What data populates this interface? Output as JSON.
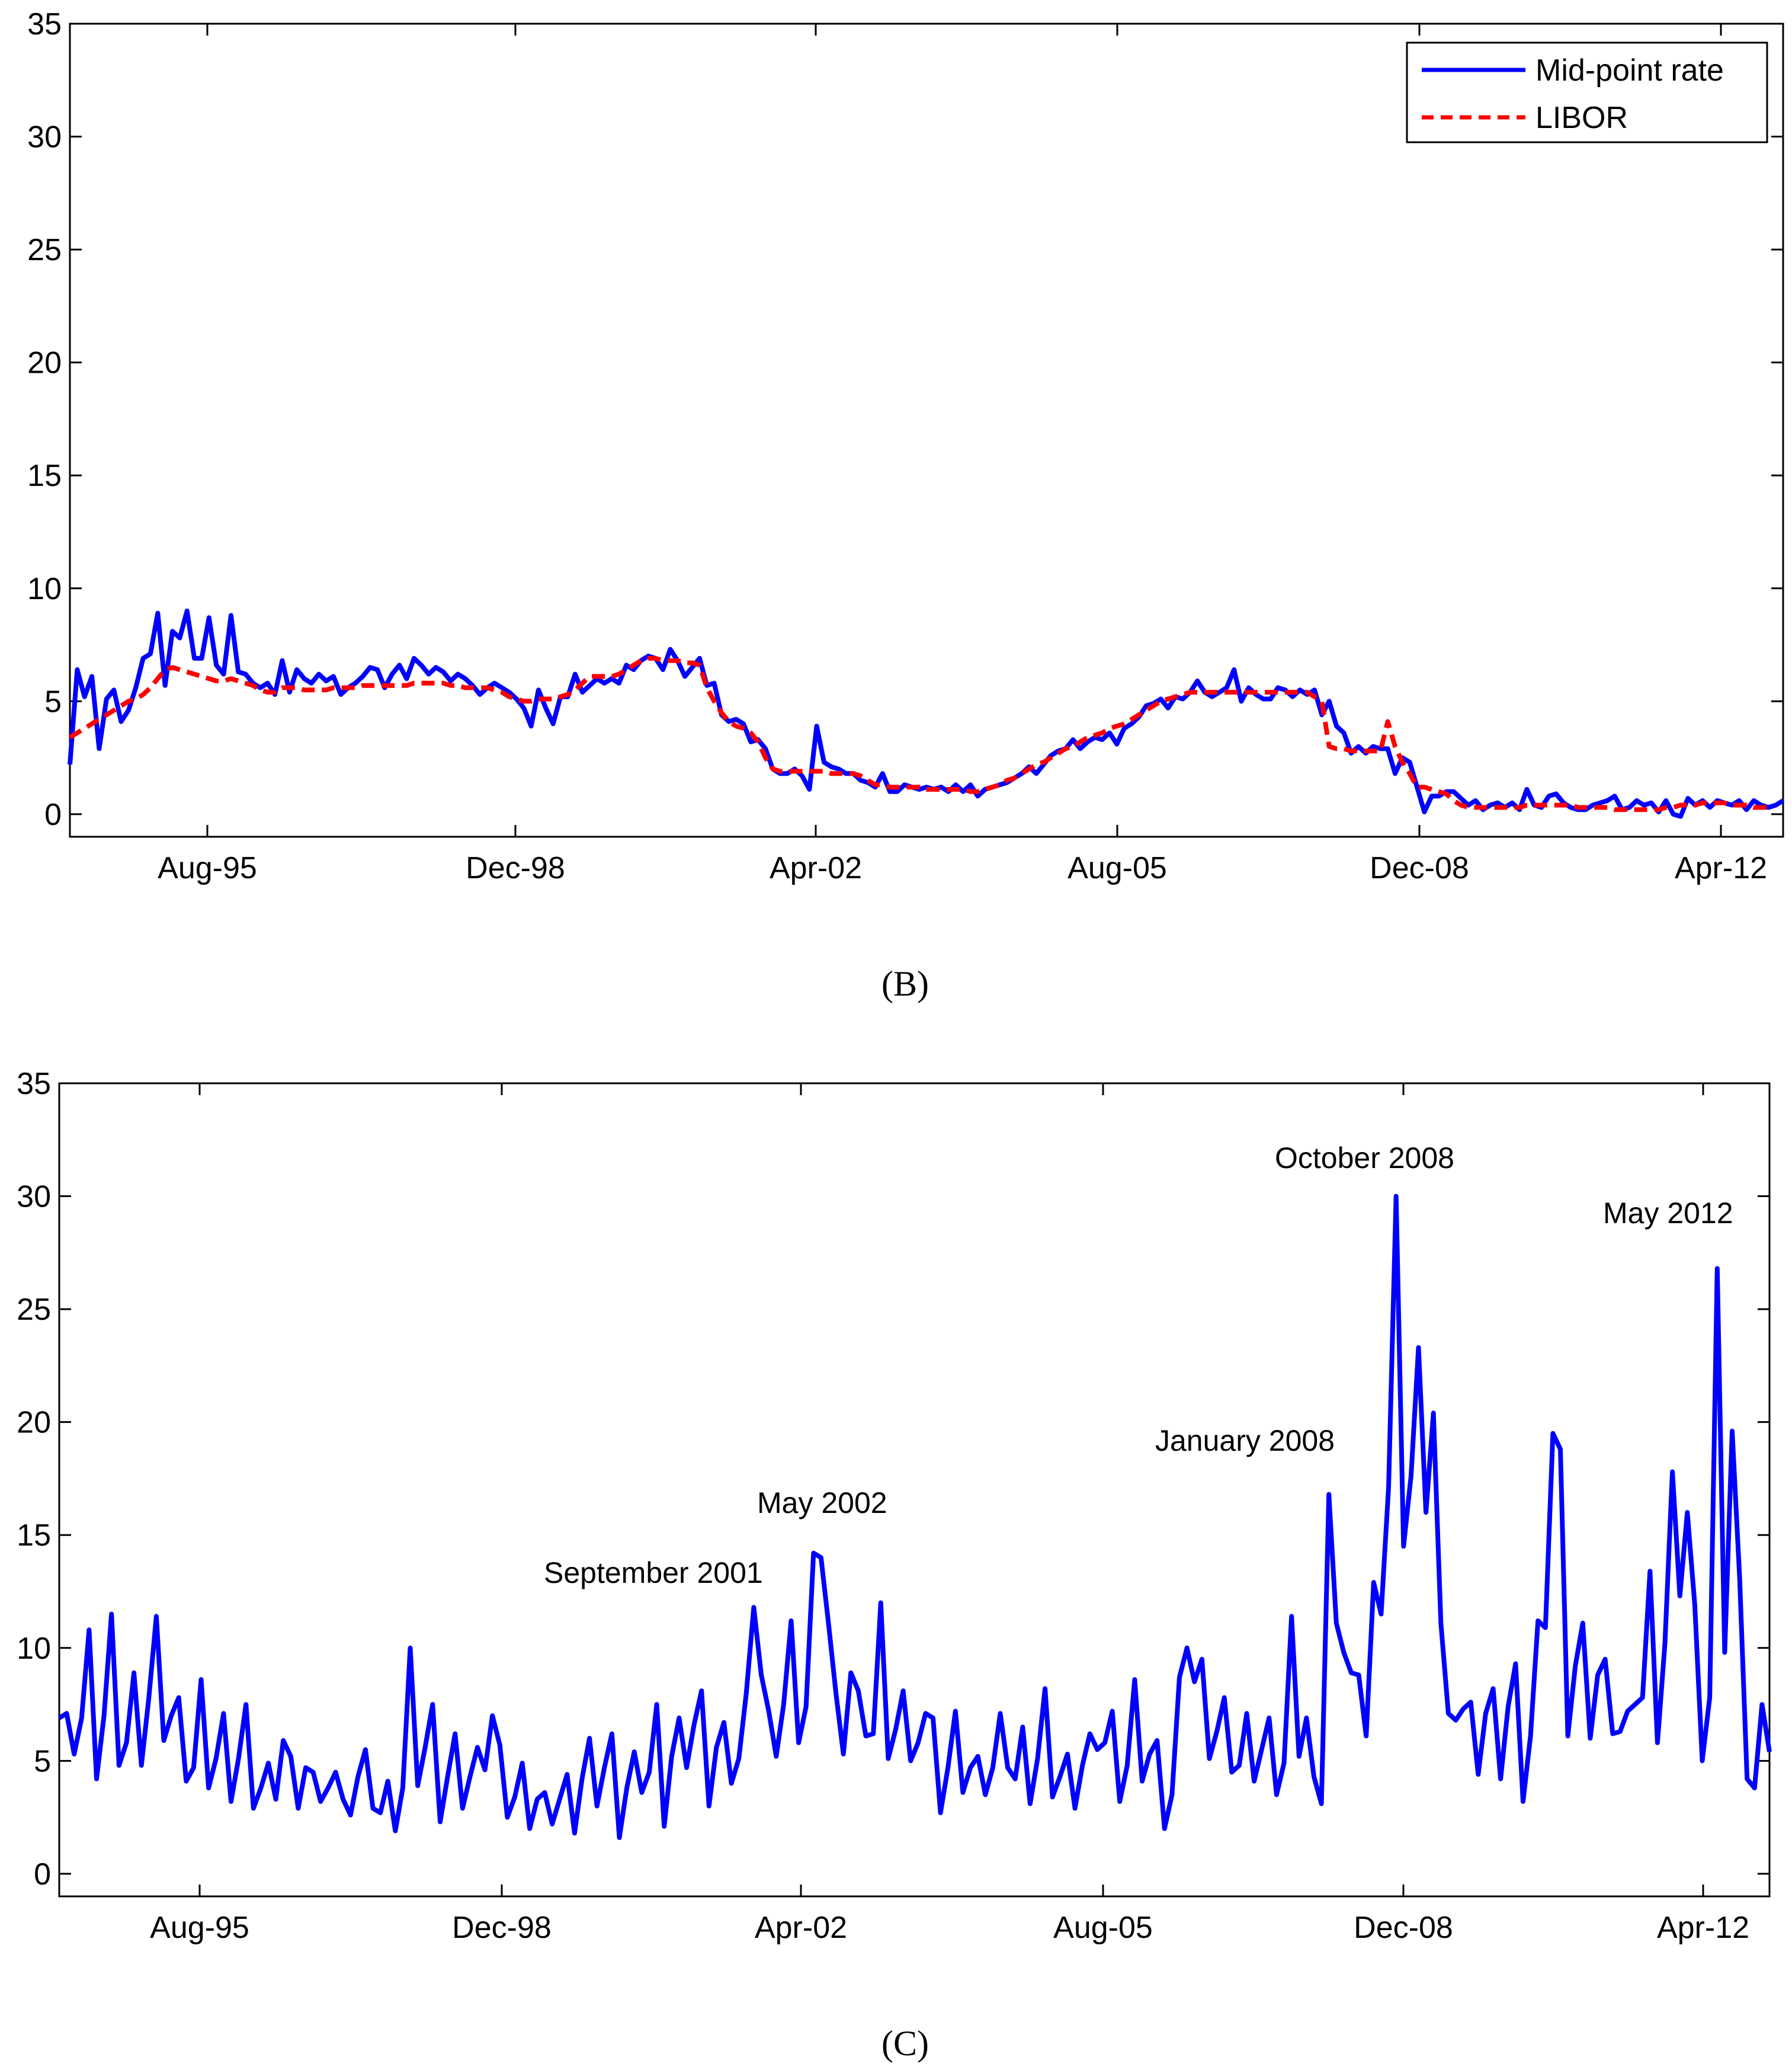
{
  "chart_data": [
    {
      "type": "line",
      "panel_label": "B",
      "title": "",
      "xlabel": "",
      "ylabel": "",
      "ylim": [
        -1,
        35
      ],
      "yticks": [
        "0",
        "5",
        "10",
        "15",
        "20",
        "25",
        "30",
        "35"
      ],
      "x_tick_labels": [
        "Aug-95",
        "Dec-98",
        "Apr-02",
        "Aug-05",
        "Dec-08",
        "Apr-12"
      ],
      "x_start": "Jan-94",
      "x_end": "Sep-12",
      "grid": false,
      "legend_position": "top-right",
      "series": [
        {
          "name": "Mid-point rate",
          "color": "#0000ff",
          "style": "solid",
          "values": [
            2.2,
            6.4,
            5.2,
            6.1,
            2.9,
            5.1,
            5.5,
            4.1,
            4.6,
            5.6,
            6.9,
            7.1,
            8.9,
            5.7,
            8.1,
            7.8,
            9.0,
            6.9,
            6.9,
            8.7,
            6.6,
            6.2,
            8.8,
            6.3,
            6.2,
            5.8,
            5.6,
            5.8,
            5.3,
            6.8,
            5.4,
            6.4,
            6.0,
            5.8,
            6.2,
            5.9,
            6.1,
            5.3,
            5.6,
            5.8,
            6.1,
            6.5,
            6.4,
            5.6,
            6.2,
            6.6,
            6.0,
            6.9,
            6.6,
            6.2,
            6.5,
            6.3,
            5.9,
            6.2,
            6.0,
            5.7,
            5.3,
            5.6,
            5.8,
            5.6,
            5.4,
            5.1,
            4.7,
            3.9,
            5.5,
            4.7,
            4.0,
            5.2,
            5.2,
            6.2,
            5.4,
            5.7,
            6.0,
            5.8,
            6.0,
            5.8,
            6.6,
            6.4,
            6.8,
            7.0,
            6.9,
            6.4,
            7.3,
            6.8,
            6.1,
            6.5,
            6.9,
            5.7,
            5.8,
            4.4,
            4.1,
            4.2,
            4.0,
            3.2,
            3.3,
            2.9,
            2.0,
            1.8,
            1.8,
            2.0,
            1.7,
            1.1,
            3.9,
            2.3,
            2.1,
            2.0,
            1.8,
            1.8,
            1.5,
            1.4,
            1.2,
            1.8,
            1.0,
            1.0,
            1.3,
            1.2,
            1.1,
            1.2,
            1.1,
            1.2,
            1.0,
            1.3,
            1.0,
            1.3,
            0.8,
            1.1,
            1.2,
            1.3,
            1.4,
            1.6,
            1.8,
            2.1,
            1.8,
            2.2,
            2.6,
            2.8,
            2.9,
            3.3,
            2.9,
            3.2,
            3.4,
            3.3,
            3.6,
            3.1,
            3.8,
            4.0,
            4.3,
            4.8,
            4.9,
            5.1,
            4.7,
            5.2,
            5.1,
            5.4,
            5.9,
            5.4,
            5.2,
            5.4,
            5.6,
            6.4,
            5.0,
            5.6,
            5.3,
            5.1,
            5.1,
            5.6,
            5.5,
            5.2,
            5.5,
            5.3,
            5.5,
            4.4,
            5.0,
            3.9,
            3.6,
            2.7,
            3.0,
            2.7,
            3.0,
            2.9,
            2.9,
            1.8,
            2.5,
            2.3,
            1.2,
            0.1,
            0.8,
            0.8,
            1.0,
            1.0,
            0.7,
            0.4,
            0.6,
            0.2,
            0.4,
            0.5,
            0.3,
            0.5,
            0.2,
            1.1,
            0.4,
            0.3,
            0.8,
            0.9,
            0.5,
            0.3,
            0.2,
            0.2,
            0.4,
            0.5,
            0.6,
            0.8,
            0.2,
            0.3,
            0.6,
            0.4,
            0.5,
            0.1,
            0.6,
            0.0,
            -0.1,
            0.7,
            0.4,
            0.6,
            0.3,
            0.6,
            0.5,
            0.4,
            0.6,
            0.2,
            0.6,
            0.4,
            0.3,
            0.4,
            0.6
          ]
        },
        {
          "name": "LIBOR",
          "color": "#ff0000",
          "style": "dashed",
          "values": [
            3.4,
            3.6,
            3.8,
            4.0,
            4.2,
            4.4,
            4.6,
            4.8,
            5.0,
            5.1,
            5.3,
            5.6,
            6.0,
            6.4,
            6.5,
            6.4,
            6.3,
            6.2,
            6.1,
            6.0,
            5.9,
            5.9,
            6.0,
            5.9,
            5.8,
            5.7,
            5.5,
            5.4,
            5.4,
            5.6,
            5.6,
            5.6,
            5.5,
            5.5,
            5.5,
            5.5,
            5.6,
            5.6,
            5.6,
            5.6,
            5.7,
            5.7,
            5.7,
            5.7,
            5.7,
            5.7,
            5.7,
            5.8,
            5.8,
            5.8,
            5.8,
            5.8,
            5.7,
            5.7,
            5.6,
            5.6,
            5.6,
            5.6,
            5.5,
            5.4,
            5.2,
            5.1,
            5.0,
            5.0,
            5.1,
            5.1,
            5.1,
            5.2,
            5.3,
            5.5,
            5.8,
            6.1,
            6.1,
            6.1,
            6.1,
            6.2,
            6.4,
            6.6,
            6.8,
            6.9,
            6.9,
            6.8,
            6.8,
            6.8,
            6.7,
            6.7,
            6.6,
            5.6,
            5.0,
            4.5,
            4.1,
            3.9,
            3.8,
            3.6,
            3.2,
            2.5,
            2.0,
            1.9,
            1.9,
            1.9,
            1.9,
            1.9,
            1.9,
            1.9,
            1.8,
            1.8,
            1.8,
            1.8,
            1.7,
            1.5,
            1.3,
            1.3,
            1.2,
            1.2,
            1.2,
            1.2,
            1.2,
            1.1,
            1.1,
            1.1,
            1.1,
            1.1,
            1.1,
            1.0,
            1.0,
            1.1,
            1.2,
            1.3,
            1.5,
            1.6,
            1.8,
            2.0,
            2.2,
            2.3,
            2.5,
            2.7,
            2.9,
            3.0,
            3.2,
            3.4,
            3.5,
            3.6,
            3.8,
            3.9,
            4.0,
            4.2,
            4.4,
            4.6,
            4.8,
            5.0,
            5.1,
            5.2,
            5.3,
            5.4,
            5.4,
            5.4,
            5.4,
            5.4,
            5.4,
            5.4,
            5.4,
            5.4,
            5.4,
            5.4,
            5.4,
            5.4,
            5.4,
            5.4,
            5.4,
            5.4,
            5.2,
            5.0,
            3.0,
            2.9,
            2.9,
            2.8,
            2.8,
            2.8,
            2.8,
            2.8,
            4.1,
            3.0,
            2.3,
            1.8,
            1.2,
            1.2,
            1.1,
            1.0,
            0.9,
            0.6,
            0.4,
            0.3,
            0.3,
            0.3,
            0.3,
            0.3,
            0.3,
            0.3,
            0.3,
            0.4,
            0.4,
            0.4,
            0.4,
            0.4,
            0.4,
            0.4,
            0.3,
            0.3,
            0.3,
            0.3,
            0.3,
            0.2,
            0.2,
            0.2,
            0.2,
            0.2,
            0.2,
            0.2,
            0.3,
            0.3,
            0.4,
            0.4,
            0.4,
            0.5,
            0.5,
            0.5,
            0.5,
            0.4,
            0.4,
            0.4,
            0.3,
            0.3,
            0.3
          ]
        }
      ]
    },
    {
      "type": "line",
      "panel_label": "C",
      "title": "",
      "xlabel": "",
      "ylabel": "",
      "ylim": [
        -1,
        35
      ],
      "yticks": [
        "0",
        "5",
        "10",
        "15",
        "20",
        "25",
        "30",
        "35"
      ],
      "x_tick_labels": [
        "Aug-95",
        "Dec-98",
        "Apr-02",
        "Aug-05",
        "Dec-08",
        "Apr-12"
      ],
      "x_start": "Jan-94",
      "x_end": "Sep-12",
      "grid": false,
      "series": [
        {
          "name": "",
          "color": "#0000ff",
          "style": "solid",
          "values": [
            6.9,
            7.1,
            5.3,
            6.9,
            10.8,
            4.2,
            7.0,
            11.5,
            4.8,
            5.8,
            8.9,
            4.8,
            7.8,
            11.4,
            5.9,
            7.0,
            7.8,
            4.1,
            4.7,
            8.6,
            3.8,
            5.1,
            7.1,
            3.2,
            5.1,
            7.5,
            2.9,
            3.8,
            4.9,
            3.3,
            5.9,
            5.2,
            2.9,
            4.7,
            4.5,
            3.2,
            3.8,
            4.5,
            3.3,
            2.6,
            4.3,
            5.5,
            2.9,
            2.7,
            4.1,
            1.9,
            3.8,
            10.0,
            3.9,
            5.6,
            7.5,
            2.3,
            4.3,
            6.2,
            2.9,
            4.3,
            5.6,
            4.6,
            7.0,
            5.7,
            2.5,
            3.4,
            4.9,
            2.0,
            3.3,
            3.6,
            2.2,
            3.3,
            4.4,
            1.8,
            4.2,
            6.0,
            3.0,
            4.7,
            6.2,
            1.6,
            3.8,
            5.4,
            3.6,
            4.5,
            7.5,
            2.1,
            5.2,
            6.9,
            4.7,
            6.6,
            8.1,
            3.0,
            5.6,
            6.7,
            4.0,
            5.1,
            8.0,
            11.8,
            8.8,
            7.2,
            5.2,
            7.5,
            11.2,
            5.8,
            7.4,
            14.2,
            14.0,
            11.1,
            8.0,
            5.3,
            8.9,
            8.1,
            6.1,
            6.2,
            12.0,
            5.1,
            6.4,
            8.1,
            5.0,
            5.8,
            7.1,
            6.9,
            2.7,
            4.7,
            7.2,
            3.6,
            4.7,
            5.2,
            3.5,
            4.7,
            7.1,
            4.7,
            4.2,
            6.5,
            3.1,
            5.1,
            8.2,
            3.4,
            4.3,
            5.3,
            2.9,
            4.8,
            6.2,
            5.5,
            5.8,
            7.2,
            3.2,
            4.8,
            8.6,
            4.1,
            5.3,
            5.9,
            2.0,
            3.5,
            8.7,
            10.0,
            8.5,
            9.5,
            5.1,
            6.3,
            7.8,
            4.5,
            4.8,
            7.1,
            4.1,
            5.5,
            6.9,
            3.5,
            4.9,
            11.4,
            5.2,
            6.9,
            4.3,
            3.1,
            16.8,
            11.1,
            9.8,
            8.9,
            8.8,
            6.1,
            12.9,
            11.5,
            17.1,
            30.0,
            14.5,
            17.6,
            23.3,
            16.0,
            20.4,
            11.1,
            7.1,
            6.8,
            7.3,
            7.6,
            4.4,
            7.1,
            8.2,
            4.2,
            7.4,
            9.3,
            3.2,
            6.1,
            11.2,
            10.9,
            19.5,
            18.8,
            6.1,
            9.2,
            11.1,
            6.0,
            8.8,
            9.5,
            6.2,
            6.3,
            7.2,
            7.5,
            7.8,
            13.4,
            5.8,
            10.2,
            17.8,
            12.3,
            16.0,
            11.9,
            5.0,
            7.8,
            26.8,
            9.8,
            19.6,
            13.1,
            4.2,
            3.8,
            7.5,
            5.4
          ]
        }
      ],
      "annotations": [
        "September 2001",
        "May 2002",
        "January 2008",
        "October 2008",
        "May 2012"
      ]
    }
  ],
  "captions": {
    "panel_b": "(B)",
    "panel_c": "(C)"
  },
  "legend": {
    "items": [
      "Mid-point rate",
      "LIBOR"
    ]
  }
}
